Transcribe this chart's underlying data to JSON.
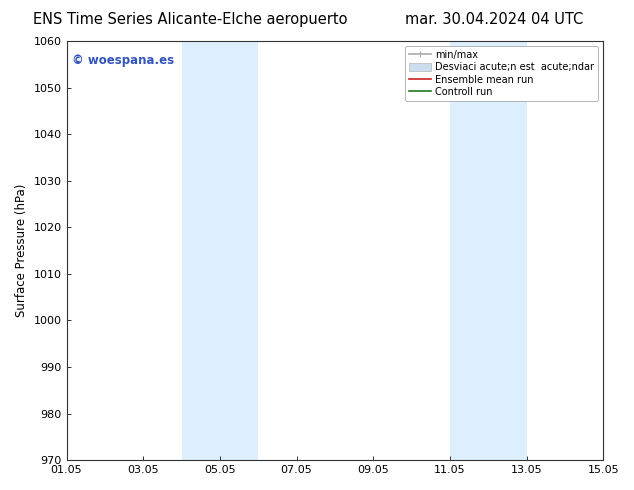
{
  "title_left": "ENS Time Series Alicante-Elche aeropuerto",
  "title_right": "mar. 30.04.2024 04 UTC",
  "ylabel": "Surface Pressure (hPa)",
  "ylim": [
    970,
    1060
  ],
  "yticks": [
    970,
    980,
    990,
    1000,
    1010,
    1020,
    1030,
    1040,
    1050,
    1060
  ],
  "xtick_labels": [
    "01.05",
    "03.05",
    "05.05",
    "07.05",
    "09.05",
    "11.05",
    "13.05",
    "15.05"
  ],
  "xtick_days": [
    1,
    3,
    5,
    7,
    9,
    11,
    13,
    15
  ],
  "xlim_days": [
    1,
    15
  ],
  "shade_regions": [
    {
      "start_day": 4.0,
      "end_day": 6.0
    },
    {
      "start_day": 11.0,
      "end_day": 13.0
    }
  ],
  "shade_color": "#ddeeff",
  "watermark_text": "© woespana.es",
  "watermark_color": "#3355bb",
  "legend_label_minmax": "min/max",
  "legend_label_std": "Desviaci acute;n est  acute;ndar",
  "legend_label_ens": "Ensemble mean run",
  "legend_label_ctrl": "Controll run",
  "legend_color_minmax": "#aaaaaa",
  "legend_color_std": "#ccddf0",
  "legend_color_ens": "#cc2222",
  "legend_color_ctrl": "#227722",
  "bg_color": "#ffffff",
  "spine_color": "#333333",
  "title_fontsize": 10.5,
  "tick_fontsize": 8,
  "ylabel_fontsize": 8.5,
  "watermark_fontsize": 8.5,
  "legend_fontsize": 7
}
